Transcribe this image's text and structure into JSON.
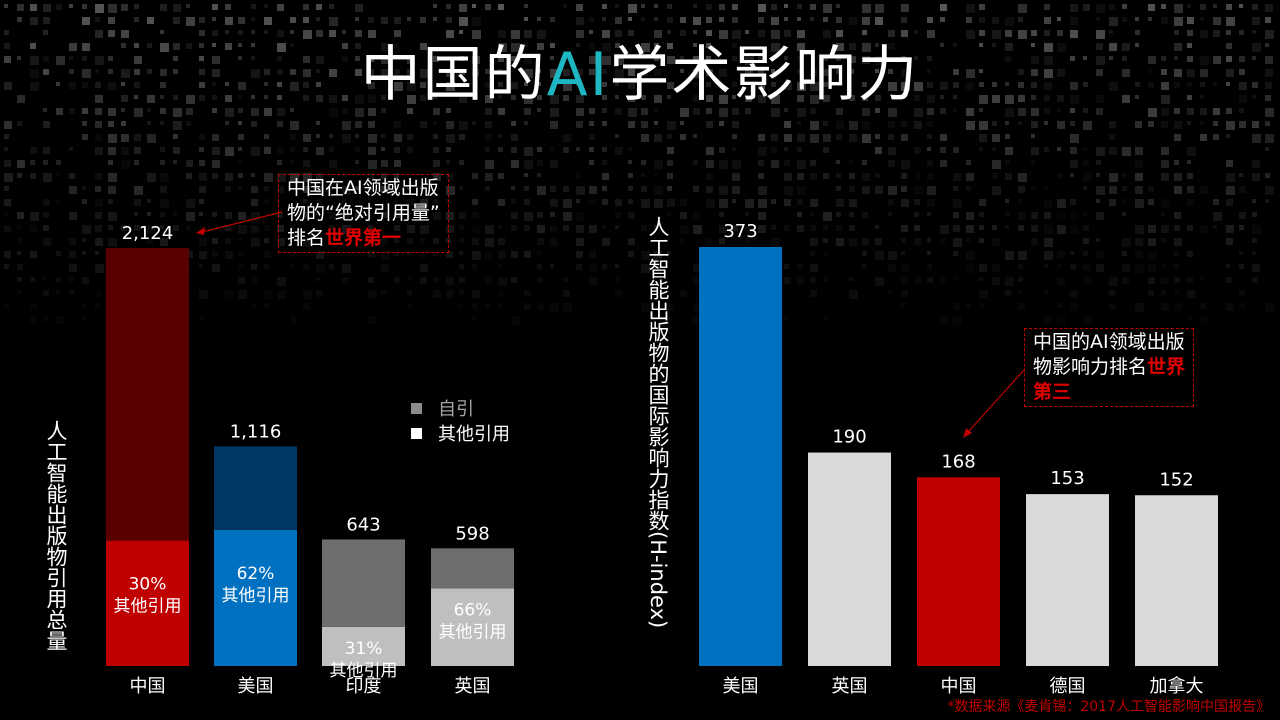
{
  "page": {
    "title_part1": "中国的",
    "title_accent": "AI",
    "title_part2": "学术影响力",
    "source": "*数据来源《麦肯锡：2017人工智能影响中国报告》",
    "colors": {
      "background": "#000000",
      "accent": "#1fb6c3",
      "china_red": "#c00000",
      "usa_blue": "#0070c0",
      "gray": "#d9d9d9"
    }
  },
  "chart_data": [
    {
      "type": "bar",
      "stacked": true,
      "ylabel": "人工智能出版物引用总量",
      "categories": [
        "中国",
        "美国",
        "印度",
        "英国"
      ],
      "totals": [
        "2,124",
        "1,116",
        "643",
        "598"
      ],
      "totals_value": [
        2124,
        1116,
        643,
        598
      ],
      "other_share_labels": [
        "30%",
        "62%",
        "31%",
        "66%"
      ],
      "segment_label": "其他引用",
      "series": [
        {
          "name": "其他引用",
          "values": [
            637,
            692,
            199,
            395
          ],
          "colors": [
            "#c00000",
            "#0070c0",
            "#bfbfbf",
            "#bfbfbf"
          ]
        },
        {
          "name": "自引",
          "values": [
            1487,
            424,
            444,
            203
          ],
          "colors": [
            "#5a0000",
            "#003764",
            "#6e6e6e",
            "#6e6e6e"
          ]
        }
      ],
      "legend": [
        {
          "name": "自引",
          "color": "#8c8c8c"
        },
        {
          "name": "其他引用",
          "color": "#ffffff"
        }
      ],
      "ylim": [
        0,
        2124
      ],
      "callout": {
        "text1": "中国在AI领域出版",
        "text2": "物的“绝对引用量”",
        "text3": "排名",
        "emphasis": "世界第一"
      }
    },
    {
      "type": "bar",
      "ylabel": "人工智能出版物的国际影响力指数(H-index)",
      "categories": [
        "美国",
        "英国",
        "中国",
        "德国",
        "加拿大"
      ],
      "values": [
        373,
        190,
        168,
        153,
        152
      ],
      "colors": [
        "#0070c0",
        "#d9d9d9",
        "#c00000",
        "#d9d9d9",
        "#d9d9d9"
      ],
      "ylim": [
        0,
        373
      ],
      "callout": {
        "text1": "中国的AI领域出版",
        "text2": "物影响力排名",
        "emphasis1": "世界",
        "emphasis2": "第三"
      }
    }
  ]
}
